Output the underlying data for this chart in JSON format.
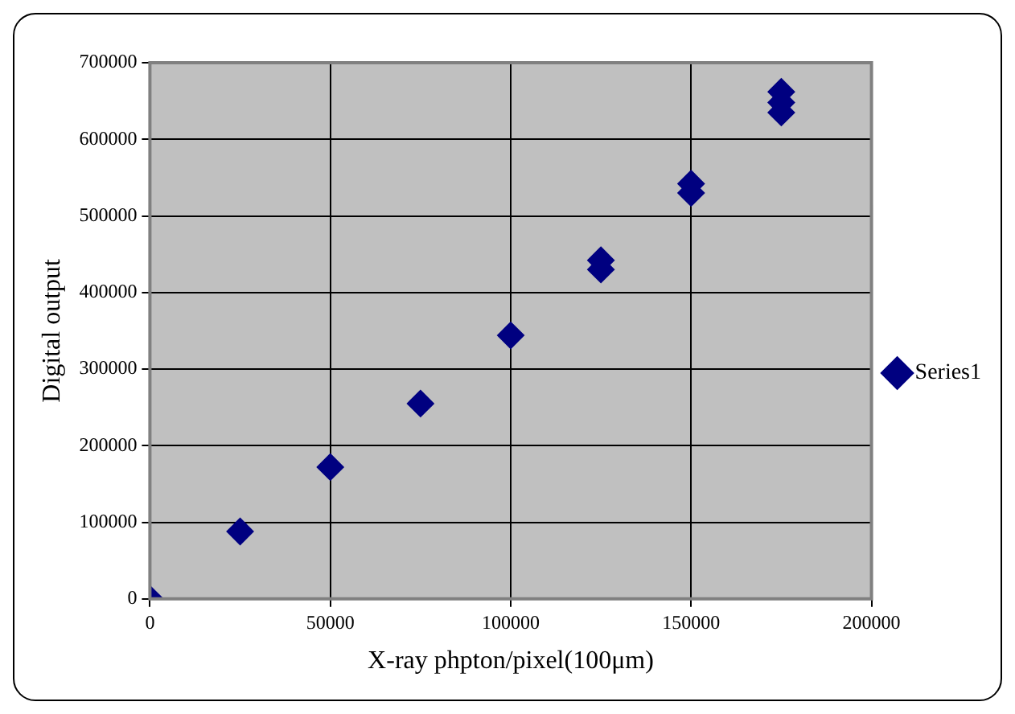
{
  "chart_data": {
    "type": "scatter",
    "xlabel": "X-ray phpton/pixel(100μm)",
    "ylabel": "Digital output",
    "x": [
      0,
      25000,
      50000,
      75000,
      100000,
      125000,
      125000,
      150000,
      150000,
      175000,
      175000,
      175000
    ],
    "series": [
      {
        "name": "Series1",
        "color": "#000080",
        "values": [
          0,
          88000,
          172000,
          255000,
          344000,
          430000,
          442000,
          530000,
          542000,
          635000,
          648000,
          662000
        ]
      }
    ],
    "xlim": [
      0,
      200000
    ],
    "xticks": [
      0,
      50000,
      100000,
      150000,
      200000
    ],
    "ylim": [
      0,
      700000
    ],
    "yticks": [
      0,
      100000,
      200000,
      300000,
      400000,
      500000,
      600000,
      700000
    ],
    "grid": true,
    "legend": "right",
    "marker": "diamond"
  }
}
